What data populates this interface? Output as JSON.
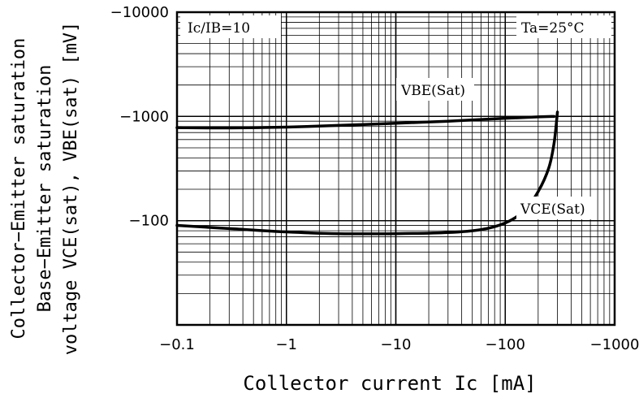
{
  "chart_data": {
    "type": "line",
    "title": "",
    "xlabel": "Collector current Ic [mA]",
    "ylabel_lines": [
      "Collector−Emitter saturation",
      "Base−Emitter saturation",
      "voltage VCE(sat), VBE(sat) [mV]"
    ],
    "x_scale": "log",
    "y_scale": "log",
    "xlim": [
      -0.1,
      -1000
    ],
    "ylim": [
      -10,
      -10000
    ],
    "x_ticks": [
      "−0.1",
      "−1",
      "−10",
      "−100",
      "−1000"
    ],
    "y_ticks": [
      "−10000",
      "−1000",
      "−100"
    ],
    "grid": true,
    "annotations": {
      "condition": "Ic/IB=10",
      "temperature": "Ta=25°C",
      "vbe_label": "VBE(Sat)",
      "vce_label": "VCE(Sat)"
    },
    "series": [
      {
        "name": "VBE(Sat)",
        "x": [
          -0.1,
          -0.3,
          -1,
          -3,
          -10,
          -30,
          -100,
          -200,
          -280
        ],
        "y": [
          -780,
          -775,
          -790,
          -820,
          -860,
          -900,
          -960,
          -990,
          -1000
        ]
      },
      {
        "name": "VCE(Sat)",
        "x": [
          -0.1,
          -0.3,
          -1,
          -3,
          -10,
          -30,
          -60,
          -100,
          -150,
          -200,
          -250,
          -280,
          -300
        ],
        "y": [
          -90,
          -84,
          -78,
          -75,
          -75,
          -77,
          -82,
          -95,
          -125,
          -190,
          -320,
          -560,
          -1100
        ]
      }
    ]
  }
}
